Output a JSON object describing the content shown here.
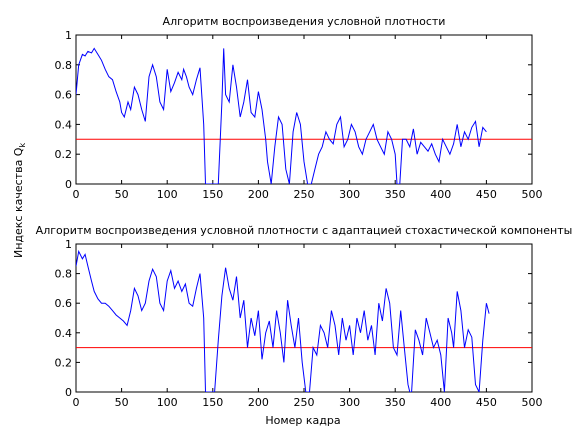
{
  "figure": {
    "ylabel_main": "Индекс качества Q",
    "ylabel_sub": "k",
    "xlabel": "Номер кадра"
  },
  "chart_data": [
    {
      "type": "line",
      "title": "Алгоритм воспроизведения условной плотности",
      "xlim": [
        0,
        500
      ],
      "ylim": [
        0,
        1
      ],
      "xticks": [
        0,
        50,
        100,
        150,
        200,
        250,
        300,
        350,
        400,
        450,
        500
      ],
      "yticks": [
        0,
        0.2,
        0.4,
        0.6,
        0.8,
        1
      ],
      "threshold": 0.3,
      "colors": {
        "series": "#0000ff",
        "threshold": "#ff0000"
      },
      "x": [
        0,
        3,
        7,
        10,
        13,
        17,
        20,
        24,
        28,
        32,
        36,
        40,
        44,
        48,
        50,
        53,
        57,
        60,
        64,
        68,
        72,
        76,
        80,
        84,
        88,
        92,
        96,
        100,
        104,
        108,
        112,
        116,
        118,
        121,
        124,
        128,
        132,
        136,
        140,
        142,
        145,
        148,
        152,
        156,
        160,
        162,
        164,
        168,
        172,
        176,
        180,
        184,
        188,
        192,
        196,
        200,
        204,
        208,
        210,
        214,
        218,
        222,
        226,
        230,
        234,
        238,
        242,
        246,
        250,
        254,
        258,
        262,
        266,
        270,
        274,
        278,
        282,
        286,
        290,
        294,
        298,
        302,
        306,
        310,
        314,
        318,
        322,
        326,
        330,
        334,
        338,
        342,
        346,
        350,
        352,
        355,
        358,
        362,
        366,
        370,
        374,
        378,
        382,
        386,
        390,
        394,
        398,
        402,
        406,
        410,
        414,
        418,
        422,
        426,
        430,
        434,
        438,
        442,
        446,
        450
      ],
      "values": [
        0.6,
        0.8,
        0.87,
        0.86,
        0.89,
        0.88,
        0.91,
        0.87,
        0.83,
        0.77,
        0.72,
        0.7,
        0.62,
        0.55,
        0.48,
        0.45,
        0.55,
        0.5,
        0.65,
        0.6,
        0.5,
        0.42,
        0.72,
        0.8,
        0.72,
        0.55,
        0.5,
        0.77,
        0.62,
        0.68,
        0.75,
        0.7,
        0.77,
        0.72,
        0.65,
        0.6,
        0.7,
        0.78,
        0.4,
        0.0,
        0.0,
        0.0,
        0.0,
        0.0,
        0.55,
        0.91,
        0.6,
        0.55,
        0.8,
        0.65,
        0.45,
        0.55,
        0.7,
        0.48,
        0.45,
        0.62,
        0.5,
        0.3,
        0.15,
        0.0,
        0.25,
        0.45,
        0.4,
        0.1,
        0.0,
        0.35,
        0.48,
        0.4,
        0.15,
        0.0,
        0.0,
        0.1,
        0.2,
        0.25,
        0.35,
        0.3,
        0.27,
        0.4,
        0.45,
        0.25,
        0.3,
        0.4,
        0.35,
        0.25,
        0.2,
        0.3,
        0.35,
        0.4,
        0.3,
        0.25,
        0.2,
        0.35,
        0.3,
        0.2,
        0.0,
        0.0,
        0.3,
        0.3,
        0.25,
        0.37,
        0.2,
        0.28,
        0.25,
        0.22,
        0.27,
        0.2,
        0.15,
        0.3,
        0.25,
        0.2,
        0.27,
        0.4,
        0.25,
        0.35,
        0.3,
        0.38,
        0.42,
        0.25,
        0.38,
        0.35
      ]
    },
    {
      "type": "line",
      "title": "Алгоритм воспроизведения условной плотности с адаптацией стохастической компоненты",
      "xlim": [
        0,
        500
      ],
      "ylim": [
        0,
        1
      ],
      "xticks": [
        0,
        50,
        100,
        150,
        200,
        250,
        300,
        350,
        400,
        450,
        500
      ],
      "yticks": [
        0,
        0.2,
        0.4,
        0.6,
        0.8,
        1
      ],
      "threshold": 0.3,
      "colors": {
        "series": "#0000ff",
        "threshold": "#ff0000"
      },
      "x": [
        0,
        3,
        7,
        10,
        13,
        17,
        20,
        24,
        28,
        32,
        36,
        40,
        44,
        48,
        52,
        56,
        60,
        64,
        68,
        72,
        76,
        80,
        84,
        88,
        92,
        96,
        100,
        104,
        108,
        112,
        116,
        120,
        124,
        128,
        132,
        136,
        140,
        142,
        145,
        148,
        152,
        156,
        160,
        164,
        168,
        172,
        176,
        180,
        184,
        188,
        192,
        196,
        200,
        204,
        208,
        212,
        216,
        220,
        224,
        228,
        232,
        236,
        240,
        244,
        248,
        252,
        256,
        260,
        264,
        268,
        272,
        276,
        280,
        284,
        288,
        292,
        296,
        300,
        304,
        308,
        312,
        316,
        320,
        324,
        328,
        332,
        336,
        340,
        344,
        348,
        352,
        356,
        360,
        364,
        366,
        368,
        372,
        376,
        380,
        384,
        388,
        392,
        396,
        400,
        404,
        408,
        412,
        414,
        418,
        422,
        426,
        430,
        434,
        438,
        442,
        446,
        450,
        453
      ],
      "values": [
        0.85,
        0.95,
        0.9,
        0.93,
        0.85,
        0.75,
        0.68,
        0.63,
        0.6,
        0.6,
        0.58,
        0.55,
        0.52,
        0.5,
        0.48,
        0.45,
        0.55,
        0.7,
        0.65,
        0.55,
        0.6,
        0.75,
        0.83,
        0.78,
        0.6,
        0.55,
        0.75,
        0.82,
        0.7,
        0.75,
        0.68,
        0.73,
        0.6,
        0.58,
        0.7,
        0.8,
        0.5,
        0.0,
        0.0,
        0.0,
        0.0,
        0.35,
        0.65,
        0.84,
        0.7,
        0.62,
        0.78,
        0.5,
        0.62,
        0.3,
        0.5,
        0.38,
        0.55,
        0.22,
        0.4,
        0.48,
        0.3,
        0.55,
        0.4,
        0.2,
        0.62,
        0.45,
        0.3,
        0.5,
        0.2,
        0.0,
        0.0,
        0.3,
        0.25,
        0.45,
        0.4,
        0.3,
        0.55,
        0.45,
        0.25,
        0.5,
        0.35,
        0.45,
        0.25,
        0.5,
        0.4,
        0.55,
        0.35,
        0.45,
        0.25,
        0.6,
        0.48,
        0.7,
        0.6,
        0.3,
        0.25,
        0.55,
        0.3,
        0.05,
        0.0,
        0.0,
        0.42,
        0.35,
        0.25,
        0.5,
        0.4,
        0.3,
        0.35,
        0.25,
        0.0,
        0.5,
        0.4,
        0.3,
        0.68,
        0.55,
        0.3,
        0.42,
        0.37,
        0.05,
        0.0,
        0.35,
        0.6,
        0.53
      ]
    }
  ]
}
